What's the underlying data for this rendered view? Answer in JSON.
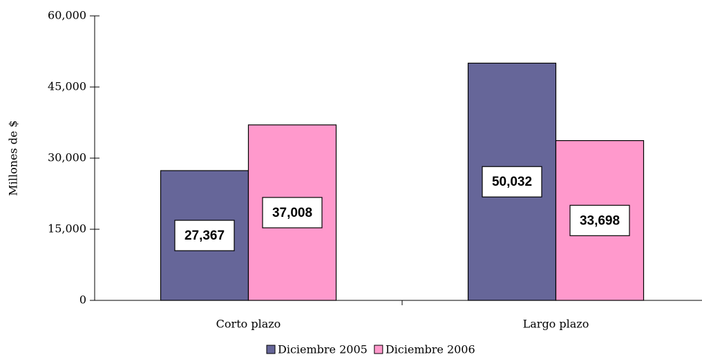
{
  "chart_data": {
    "type": "bar",
    "y_label": "Millones de $",
    "categories": [
      "Corto plazo",
      "Largo plazo"
    ],
    "series": [
      {
        "name": "Diciembre 2005",
        "color": "#666699",
        "values": [
          27367,
          50032
        ],
        "value_labels": [
          "27,367",
          "50,032"
        ]
      },
      {
        "name": "Diciembre 2006",
        "color": "#ff99cc",
        "values": [
          37008,
          33698
        ],
        "value_labels": [
          "37,008",
          "33,698"
        ]
      }
    ],
    "ylim": [
      0,
      60000
    ],
    "yticks": [
      0,
      {
        "value": 15000,
        "label": "15,000"
      },
      {
        "value": 30000,
        "label": "30,000"
      },
      {
        "value": 45000,
        "label": "45,000"
      },
      {
        "value": 60000,
        "label": "60,000"
      }
    ],
    "legend": "bottom"
  }
}
